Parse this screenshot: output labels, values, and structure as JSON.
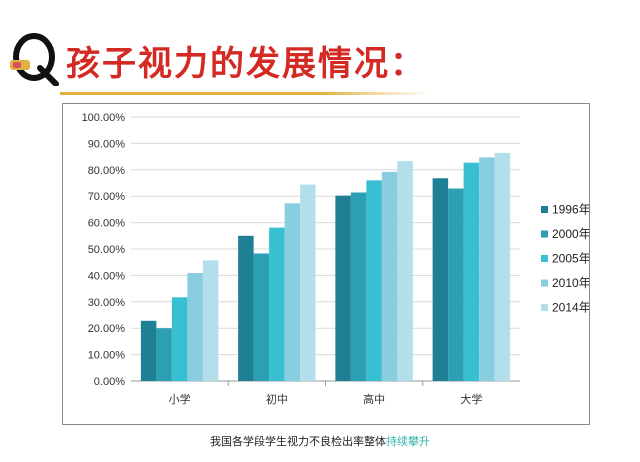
{
  "header": {
    "title": "孩子视力的发展情况："
  },
  "caption": {
    "text": "我国各学段学生视力不良检出率整体",
    "highlight": "持续攀升"
  },
  "colors": {
    "title": "#d42a24",
    "q_accent": "#e0b040",
    "series": [
      "#1f7f95",
      "#2c9fb2",
      "#38bfd1",
      "#88cde0",
      "#b3dfea"
    ],
    "highlight": "#2fb1a8"
  },
  "chart_data": {
    "type": "bar",
    "categories": [
      "小学",
      "初中",
      "高中",
      "大学"
    ],
    "series": [
      {
        "name": "1996年",
        "values": [
          22.8,
          55.0,
          70.2,
          76.8
        ]
      },
      {
        "name": "2000年",
        "values": [
          20.0,
          48.3,
          71.4,
          72.9
        ]
      },
      {
        "name": "2005年",
        "values": [
          31.7,
          58.1,
          76.0,
          82.7
        ]
      },
      {
        "name": "2010年",
        "values": [
          40.9,
          67.3,
          79.2,
          84.7
        ]
      },
      {
        "name": "2014年",
        "values": [
          45.7,
          74.4,
          83.3,
          86.4
        ]
      }
    ],
    "yticks": [
      "0.00%",
      "10.00%",
      "20.00%",
      "30.00%",
      "40.00%",
      "50.00%",
      "60.00%",
      "70.00%",
      "80.00%",
      "90.00%",
      "100.00%"
    ],
    "ylim": [
      0,
      100
    ],
    "grid": true,
    "legend_position": "right",
    "xlabel": "",
    "ylabel": ""
  }
}
